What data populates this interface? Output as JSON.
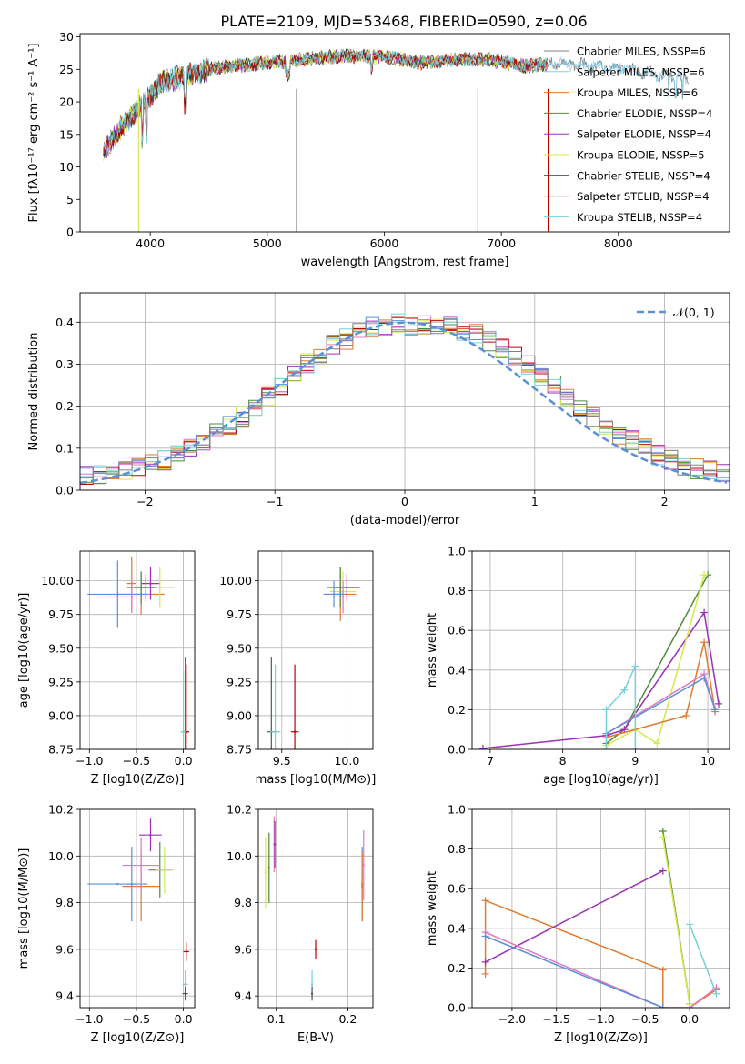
{
  "figure": {
    "title": "PLATE=2109, MJD=53468, FIBERID=0590, z=0.06"
  },
  "chart_data": [
    {
      "id": "spectrum",
      "type": "line",
      "xlabel": "wavelength [Angstrom, rest frame]",
      "ylabel": "Flux [fλ10⁻¹⁷ erg cm⁻² s⁻¹ A⁻¹]",
      "xlim": [
        3400,
        8950
      ],
      "ylim": [
        0,
        30.5
      ],
      "xticks": [
        4000,
        5000,
        6000,
        7000,
        8000
      ],
      "yticks": [
        0,
        5,
        10,
        15,
        20,
        25,
        30
      ],
      "grid": false,
      "legend_position": "right",
      "series": [
        {
          "name": "Chabrier MILES, NSSP=6",
          "color": "#808080"
        },
        {
          "name": "Salpeter MILES, NSSP=6",
          "color": "#87ceeb"
        },
        {
          "name": "Kroupa MILES, NSSP=6",
          "color": "#e07a2f"
        },
        {
          "name": "Chabrier ELODIE, NSSP=4",
          "color": "#4f8a3c"
        },
        {
          "name": "Salpeter ELODIE, NSSP=4",
          "color": "#9b30b8"
        },
        {
          "name": "Kroupa ELODIE, NSSP=5",
          "color": "#d7e84a"
        },
        {
          "name": "Chabrier STELIB, NSSP=4",
          "color": "#333333"
        },
        {
          "name": "Salpeter STELIB, NSSP=4",
          "color": "#c00000"
        },
        {
          "name": "Kroupa STELIB, NSSP=4",
          "color": "#76d0d8"
        }
      ],
      "data_continuum": {
        "x": [
          3600,
          3700,
          3800,
          3900,
          4000,
          4100,
          4200,
          4300,
          4400,
          4500,
          4700,
          5000,
          5300,
          5600,
          6000,
          6300,
          6600,
          6900,
          7200,
          7500,
          7800,
          8100,
          8400,
          8600
        ],
        "y": [
          12,
          15,
          17,
          19,
          21,
          23,
          23.5,
          24,
          24.5,
          25,
          25.5,
          26,
          26.5,
          27,
          27,
          26,
          26.5,
          26.5,
          25.5,
          26,
          25.5,
          25,
          24,
          23.5
        ]
      }
    },
    {
      "id": "residuals",
      "type": "line",
      "xlabel": "(data-model)/error",
      "ylabel": "Normed distribution",
      "xlim": [
        -2.5,
        2.5
      ],
      "ylim": [
        0,
        0.47
      ],
      "xticks": [
        -2,
        -1,
        0,
        1,
        2
      ],
      "yticks": [
        0.0,
        0.1,
        0.2,
        0.3,
        0.4
      ],
      "grid": true,
      "legend_position": "top-right",
      "legend_label": "𝒩(0, 1)",
      "gaussian_color": "#5b8fd8",
      "histogram": {
        "bin_edges_start": -2.5,
        "bin_width": 0.1,
        "mean": [
          0.035,
          0.04,
          0.045,
          0.05,
          0.06,
          0.065,
          0.07,
          0.085,
          0.1,
          0.12,
          0.135,
          0.155,
          0.175,
          0.2,
          0.225,
          0.25,
          0.275,
          0.3,
          0.32,
          0.345,
          0.36,
          0.38,
          0.39,
          0.385,
          0.4,
          0.39,
          0.395,
          0.385,
          0.39,
          0.38,
          0.37,
          0.355,
          0.34,
          0.32,
          0.3,
          0.275,
          0.25,
          0.225,
          0.2,
          0.175,
          0.155,
          0.135,
          0.12,
          0.1,
          0.085,
          0.07,
          0.06,
          0.05,
          0.045,
          0.04
        ]
      }
    },
    {
      "id": "age-vs-z",
      "type": "scatter",
      "xlabel": "Z [log10(Z/Z⊙)]",
      "ylabel": "age  [log10(age/yr)]",
      "xlim": [
        -1.1,
        0.12
      ],
      "ylim": [
        8.75,
        10.22
      ],
      "xticks": [
        -1.0,
        -0.5,
        0.0
      ],
      "yticks": [
        8.75,
        9.0,
        9.25,
        9.5,
        9.75,
        10.0
      ],
      "grid": true,
      "points": [
        {
          "x": -0.55,
          "y": 9.98,
          "xerr": 0.05,
          "yerr": 0.2,
          "color": "#e07a2f"
        },
        {
          "x": -0.45,
          "y": 9.9,
          "xerr": 0.25,
          "yerr": 0.15,
          "color": "#e07a2f"
        },
        {
          "x": -0.4,
          "y": 9.95,
          "xerr": 0.12,
          "yerr": 0.1,
          "color": "#4f8a3c"
        },
        {
          "x": -0.35,
          "y": 9.98,
          "xerr": 0.1,
          "yerr": 0.12,
          "color": "#9b30b8"
        },
        {
          "x": -0.25,
          "y": 9.95,
          "xerr": 0.15,
          "yerr": 0.15,
          "color": "#d7e84a"
        },
        {
          "x": -0.45,
          "y": 9.95,
          "xerr": 0.15,
          "yerr": 0.12,
          "color": "#4f8a3c"
        },
        {
          "x": -0.7,
          "y": 9.9,
          "xerr": 0.32,
          "yerr": 0.25,
          "color": "#5b8fd8"
        },
        {
          "x": -0.55,
          "y": 9.88,
          "xerr": 0.25,
          "yerr": 0.12,
          "color": "#e377c2"
        },
        {
          "x": 0.02,
          "y": 8.88,
          "xerr": 0.04,
          "yerr": 0.55,
          "color": "#555555"
        },
        {
          "x": 0.03,
          "y": 8.88,
          "xerr": 0.03,
          "yerr": 0.5,
          "color": "#c00000"
        },
        {
          "x": 0.0,
          "y": 8.88,
          "xerr": 0.03,
          "yerr": 0.45,
          "color": "#76d0d8"
        }
      ]
    },
    {
      "id": "age-vs-mass",
      "type": "scatter",
      "xlabel": "mass [log10(M/M⊙)]",
      "ylabel": "",
      "xlim": [
        9.32,
        10.2
      ],
      "ylim": [
        8.75,
        10.22
      ],
      "xticks": [
        9.5,
        10.0
      ],
      "yticks": [
        8.75,
        9.0,
        9.25,
        9.5,
        9.75,
        10.0
      ],
      "grid": true,
      "points": [
        {
          "x": 9.95,
          "y": 9.9,
          "xerr": 0.12,
          "yerr": 0.2,
          "color": "#e07a2f"
        },
        {
          "x": 9.97,
          "y": 9.92,
          "xerr": 0.1,
          "yerr": 0.15,
          "color": "#d7e84a"
        },
        {
          "x": 10.0,
          "y": 9.95,
          "xerr": 0.1,
          "yerr": 0.1,
          "color": "#9b30b8"
        },
        {
          "x": 9.95,
          "y": 9.95,
          "xerr": 0.1,
          "yerr": 0.15,
          "color": "#4f8a3c"
        },
        {
          "x": 9.97,
          "y": 9.88,
          "xerr": 0.12,
          "yerr": 0.12,
          "color": "#e377c2"
        },
        {
          "x": 9.9,
          "y": 9.9,
          "xerr": 0.08,
          "yerr": 0.1,
          "color": "#5b8fd8"
        },
        {
          "x": 9.42,
          "y": 8.88,
          "xerr": 0.03,
          "yerr": 0.55,
          "color": "#555555"
        },
        {
          "x": 9.6,
          "y": 8.88,
          "xerr": 0.03,
          "yerr": 0.5,
          "color": "#c00000"
        },
        {
          "x": 9.45,
          "y": 8.88,
          "xerr": 0.04,
          "yerr": 0.5,
          "color": "#76d0d8"
        }
      ]
    },
    {
      "id": "weight-vs-age",
      "type": "line",
      "xlabel": "age  [log10(age/yr)]",
      "ylabel": "mass weight",
      "xlim": [
        6.75,
        10.3
      ],
      "ylim": [
        0,
        1.0
      ],
      "xticks": [
        7,
        8,
        9,
        10
      ],
      "yticks": [
        0.0,
        0.2,
        0.4,
        0.6,
        0.8,
        1.0
      ],
      "grid": true,
      "series": [
        {
          "color": "#4f8a3c",
          "x": [
            8.6,
            8.85,
            10.0
          ],
          "y": [
            0.03,
            0.1,
            0.88
          ]
        },
        {
          "color": "#9b30b8",
          "x": [
            6.9,
            8.6,
            8.85,
            9.95,
            10.15
          ],
          "y": [
            0.005,
            0.07,
            0.1,
            0.69,
            0.23
          ]
        },
        {
          "color": "#d7e84a",
          "x": [
            8.6,
            9.0,
            9.3,
            9.95
          ],
          "y": [
            0.02,
            0.1,
            0.03,
            0.88
          ]
        },
        {
          "color": "#e07a2f",
          "x": [
            8.6,
            9.7,
            9.95,
            10.1
          ],
          "y": [
            0.06,
            0.17,
            0.54,
            0.19
          ]
        },
        {
          "color": "#e377c2",
          "x": [
            8.6,
            9.95,
            10.1
          ],
          "y": [
            0.08,
            0.38,
            0.2
          ]
        },
        {
          "color": "#5b8fd8",
          "x": [
            8.6,
            9.95,
            10.1
          ],
          "y": [
            0.08,
            0.36,
            0.2
          ]
        },
        {
          "color": "#76d0d8",
          "x": [
            8.6,
            8.6,
            8.85,
            9.0,
            9.0
          ],
          "y": [
            0.0,
            0.2,
            0.3,
            0.42,
            0.0
          ]
        }
      ]
    },
    {
      "id": "mass-vs-z",
      "type": "scatter",
      "xlabel": "Z [log10(Z/Z⊙)]",
      "ylabel": "mass [log10(M/M⊙)]",
      "xlim": [
        -1.1,
        0.12
      ],
      "ylim": [
        9.35,
        10.2
      ],
      "xticks": [
        -1.0,
        -0.5,
        0.0
      ],
      "yticks": [
        9.4,
        9.6,
        9.8,
        10.0,
        10.2
      ],
      "grid": true,
      "points": [
        {
          "x": -0.55,
          "y": 9.88,
          "xerr": 0.05,
          "yerr": 0.16,
          "color": "#5b8fd8"
        },
        {
          "x": -0.7,
          "y": 9.88,
          "xerr": 0.32,
          "yerr": 0.0,
          "color": "#5b8fd8"
        },
        {
          "x": -0.45,
          "y": 9.87,
          "xerr": 0.2,
          "yerr": 0.15,
          "color": "#e07a2f"
        },
        {
          "x": -0.35,
          "y": 10.09,
          "xerr": 0.12,
          "yerr": 0.07,
          "color": "#9b30b8"
        },
        {
          "x": -0.25,
          "y": 9.94,
          "xerr": 0.12,
          "yerr": 0.12,
          "color": "#4f8a3c"
        },
        {
          "x": -0.45,
          "y": 9.96,
          "xerr": 0.2,
          "yerr": 0.12,
          "color": "#e377c2"
        },
        {
          "x": -0.2,
          "y": 9.94,
          "xerr": 0.1,
          "yerr": 0.1,
          "color": "#d7e84a"
        },
        {
          "x": 0.03,
          "y": 9.59,
          "xerr": 0.03,
          "yerr": 0.04,
          "color": "#c00000"
        },
        {
          "x": 0.02,
          "y": 9.45,
          "xerr": 0.03,
          "yerr": 0.06,
          "color": "#76d0d8"
        },
        {
          "x": 0.02,
          "y": 9.41,
          "xerr": 0.03,
          "yerr": 0.03,
          "color": "#555555"
        }
      ]
    },
    {
      "id": "mass-vs-ebv",
      "type": "scatter",
      "xlabel": "E(B-V)",
      "ylabel": "",
      "xlim": [
        0.075,
        0.235
      ],
      "ylim": [
        9.35,
        10.2
      ],
      "xticks": [
        0.1,
        0.2
      ],
      "yticks": [
        9.4,
        9.6,
        9.8,
        10.0,
        10.2
      ],
      "grid": true,
      "points": [
        {
          "x": 0.085,
          "y": 9.93,
          "xerr": 0,
          "yerr": 0.15,
          "color": "#d7e84a"
        },
        {
          "x": 0.09,
          "y": 9.95,
          "xerr": 0,
          "yerr": 0.15,
          "color": "#4f8a3c"
        },
        {
          "x": 0.097,
          "y": 10.05,
          "xerr": 0,
          "yerr": 0.12,
          "color": "#e377c2"
        },
        {
          "x": 0.098,
          "y": 10.05,
          "xerr": 0,
          "yerr": 0.1,
          "color": "#9b30b8"
        },
        {
          "x": 0.15,
          "y": 9.45,
          "xerr": 0,
          "yerr": 0.06,
          "color": "#76d0d8"
        },
        {
          "x": 0.15,
          "y": 9.41,
          "xerr": 0,
          "yerr": 0.03,
          "color": "#555555"
        },
        {
          "x": 0.155,
          "y": 9.6,
          "xerr": 0,
          "yerr": 0.04,
          "color": "#c00000"
        },
        {
          "x": 0.22,
          "y": 9.88,
          "xerr": 0,
          "yerr": 0.16,
          "color": "#5b8fd8"
        },
        {
          "x": 0.22,
          "y": 9.87,
          "xerr": 0,
          "yerr": 0.15,
          "color": "#e07a2f"
        },
        {
          "x": 0.222,
          "y": 9.96,
          "xerr": 0,
          "yerr": 0.15,
          "color": "#e377c2"
        }
      ]
    },
    {
      "id": "weight-vs-z",
      "type": "line",
      "xlabel": "Z [log10(Z/Z⊙)]",
      "ylabel": "mass weight",
      "xlim": [
        -2.45,
        0.45
      ],
      "ylim": [
        0,
        1.0
      ],
      "xticks": [
        -2.0,
        -1.5,
        -1.0,
        -0.5,
        0.0
      ],
      "yticks": [
        0.0,
        0.2,
        0.4,
        0.6,
        0.8,
        1.0
      ],
      "grid": true,
      "series": [
        {
          "color": "#e07a2f",
          "x": [
            -2.3,
            -2.3,
            -0.3,
            -0.3,
            0.0,
            0.3
          ],
          "y": [
            0.17,
            0.54,
            0.19,
            0.0,
            0.0,
            0.09
          ]
        },
        {
          "color": "#9b30b8",
          "x": [
            -2.3,
            -0.3
          ],
          "y": [
            0.23,
            0.69
          ]
        },
        {
          "color": "#e377c2",
          "x": [
            -2.3,
            -0.3,
            0.0,
            0.3
          ],
          "y": [
            0.38,
            0.0,
            0.0,
            0.1
          ]
        },
        {
          "color": "#5b8fd8",
          "x": [
            -2.3,
            -0.3
          ],
          "y": [
            0.36,
            0.0
          ]
        },
        {
          "color": "#4f8a3c",
          "x": [
            -0.3,
            0.0
          ],
          "y": [
            0.89,
            0.02
          ]
        },
        {
          "color": "#d7e84a",
          "x": [
            -0.3,
            0.0
          ],
          "y": [
            0.86,
            0.02
          ]
        },
        {
          "color": "#76d0d8",
          "x": [
            0.0,
            0.0,
            0.3
          ],
          "y": [
            0.0,
            0.42,
            0.07
          ]
        }
      ]
    }
  ]
}
